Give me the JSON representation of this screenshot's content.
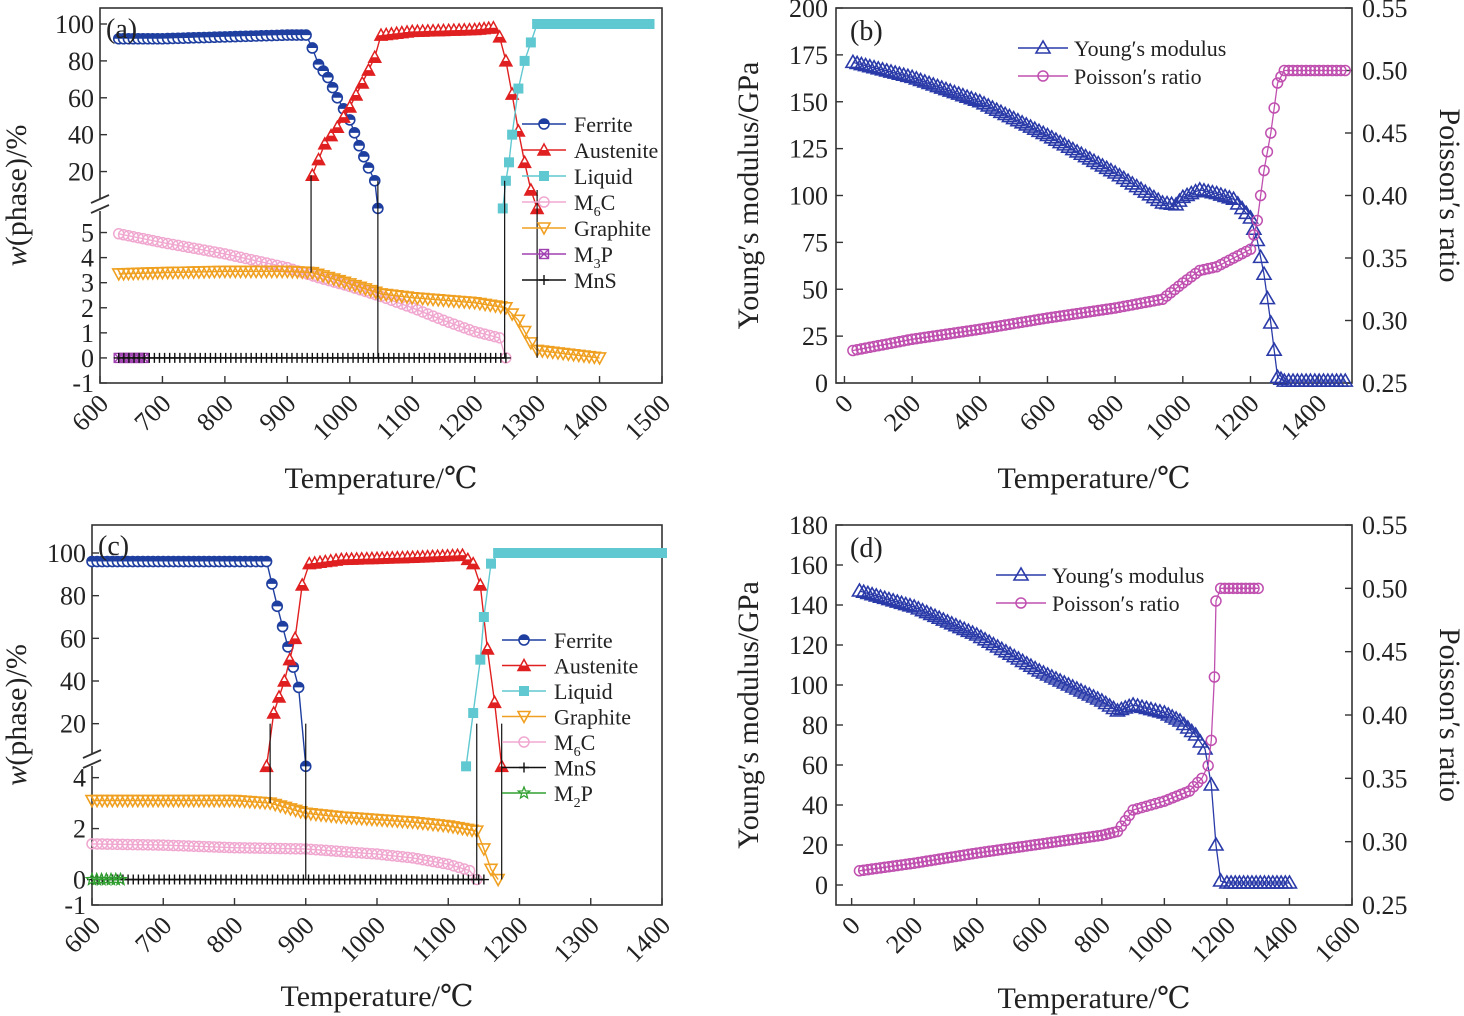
{
  "colors": {
    "ferrite": "#1f3fa0",
    "austenite": "#e02020",
    "liquid": "#60c8d0",
    "m6c": "#f0a8d0",
    "graphite": "#f0a020",
    "m3p": "#a040b0",
    "mns": "#111111",
    "m2p": "#30a030",
    "young": "#2a3aa8",
    "poisson": "#c050b0"
  },
  "chart_data": [
    {
      "panel": "(a)",
      "type": "line",
      "xlabel": "Temperature/℃",
      "ylabel": "w(phase)/%",
      "xlim": [
        600,
        1500
      ],
      "xticks": [
        "600",
        "700",
        "800",
        "900",
        "1000",
        "1100",
        "1200",
        "1300",
        "1400",
        "1500"
      ],
      "broken_y_axis": true,
      "upper_yticks": [
        "20",
        "40",
        "60",
        "80",
        "100"
      ],
      "lower_yticks": [
        "-1",
        "0",
        "1",
        "2",
        "3",
        "4",
        "5"
      ],
      "legend": [
        "Ferrite",
        "Austenite",
        "Liquid",
        "M6C",
        "Graphite",
        "M3P",
        "MnS"
      ],
      "series": [
        {
          "name": "Ferrite",
          "segment": "upper",
          "points": [
            [
              630,
              92
            ],
            [
              700,
              92
            ],
            [
              800,
              93
            ],
            [
              900,
              94
            ],
            [
              930,
              94
            ],
            [
              940,
              87
            ],
            [
              950,
              78
            ],
            [
              965,
              71
            ],
            [
              980,
              60
            ],
            [
              1000,
              48
            ],
            [
              1015,
              34
            ],
            [
              1030,
              22
            ],
            [
              1040,
              15
            ],
            [
              1045,
              0
            ]
          ]
        },
        {
          "name": "Austenite",
          "segment": "upper",
          "points": [
            [
              940,
              18
            ],
            [
              960,
              35
            ],
            [
              980,
              44
            ],
            [
              1000,
              55
            ],
            [
              1020,
              68
            ],
            [
              1040,
              82
            ],
            [
              1050,
              94
            ],
            [
              1100,
              96
            ],
            [
              1200,
              97
            ],
            [
              1230,
              98
            ],
            [
              1240,
              93
            ],
            [
              1250,
              80
            ],
            [
              1260,
              62
            ],
            [
              1270,
              42
            ],
            [
              1280,
              25
            ],
            [
              1290,
              10
            ],
            [
              1300,
              0
            ]
          ]
        },
        {
          "name": "Liquid",
          "segment": "upper",
          "points": [
            [
              1245,
              0
            ],
            [
              1250,
              15
            ],
            [
              1255,
              25
            ],
            [
              1260,
              40
            ],
            [
              1270,
              65
            ],
            [
              1280,
              80
            ],
            [
              1290,
              90
            ],
            [
              1300,
              100
            ],
            [
              1480,
              100
            ]
          ]
        },
        {
          "name": "M6C",
          "segment": "lower",
          "points": [
            [
              630,
              4.95
            ],
            [
              700,
              4.6
            ],
            [
              800,
              4.15
            ],
            [
              900,
              3.6
            ],
            [
              950,
              3.2
            ],
            [
              1000,
              2.85
            ],
            [
              1050,
              2.45
            ],
            [
              1100,
              2.0
            ],
            [
              1150,
              1.5
            ],
            [
              1200,
              1.05
            ],
            [
              1240,
              0.8
            ],
            [
              1250,
              0
            ]
          ]
        },
        {
          "name": "Graphite",
          "segment": "lower",
          "points": [
            [
              630,
              3.35
            ],
            [
              700,
              3.4
            ],
            [
              800,
              3.45
            ],
            [
              900,
              3.45
            ],
            [
              940,
              3.4
            ],
            [
              1000,
              2.95
            ],
            [
              1050,
              2.55
            ],
            [
              1100,
              2.4
            ],
            [
              1200,
              2.2
            ],
            [
              1250,
              2.0
            ],
            [
              1270,
              1.5
            ],
            [
              1290,
              0.6
            ],
            [
              1300,
              0.3
            ],
            [
              1350,
              0.15
            ],
            [
              1400,
              0
            ]
          ]
        },
        {
          "name": "M3P",
          "segment": "lower",
          "points": [
            [
              630,
              0
            ],
            [
              670,
              0
            ]
          ]
        },
        {
          "name": "MnS",
          "segment": "lower",
          "points": [
            [
              630,
              0
            ],
            [
              1250,
              0
            ]
          ]
        }
      ]
    },
    {
      "panel": "(b)",
      "type": "line",
      "xlabel": "Temperature/℃",
      "ylabel": "Young′s modulus/GPa",
      "y2label": "Poisson′s ratio",
      "xlim": [
        -25,
        1500
      ],
      "ylim": [
        0,
        200
      ],
      "y2lim": [
        0.25,
        0.55
      ],
      "xticks": [
        "0",
        "200",
        "400",
        "600",
        "800",
        "1000",
        "1200",
        "1400"
      ],
      "yticks": [
        "0",
        "25",
        "50",
        "75",
        "100",
        "125",
        "150",
        "175",
        "200"
      ],
      "y2ticks": [
        "0.25",
        "0.30",
        "0.35",
        "0.40",
        "0.45",
        "0.50",
        "0.55"
      ],
      "legend": [
        "Young′s modulus",
        "Poisson′s ratio"
      ],
      "series": [
        {
          "name": "Young′s modulus",
          "axis": "left",
          "points": [
            [
              25,
              171
            ],
            [
              200,
              163
            ],
            [
              400,
              150
            ],
            [
              600,
              132
            ],
            [
              800,
              112
            ],
            [
              940,
              96
            ],
            [
              980,
              95
            ],
            [
              1000,
              99
            ],
            [
              1050,
              103
            ],
            [
              1100,
              101
            ],
            [
              1150,
              98
            ],
            [
              1200,
              88
            ],
            [
              1220,
              76
            ],
            [
              1240,
              58
            ],
            [
              1260,
              32
            ],
            [
              1280,
              3
            ],
            [
              1300,
              1
            ],
            [
              1480,
              1
            ]
          ]
        },
        {
          "name": "Poisson′s ratio",
          "axis": "right",
          "points": [
            [
              25,
              0.276
            ],
            [
              200,
              0.285
            ],
            [
              400,
              0.293
            ],
            [
              600,
              0.302
            ],
            [
              800,
              0.31
            ],
            [
              940,
              0.317
            ],
            [
              1000,
              0.33
            ],
            [
              1050,
              0.34
            ],
            [
              1100,
              0.343
            ],
            [
              1200,
              0.357
            ],
            [
              1220,
              0.38
            ],
            [
              1240,
              0.42
            ],
            [
              1260,
              0.45
            ],
            [
              1280,
              0.49
            ],
            [
              1300,
              0.5
            ],
            [
              1480,
              0.5
            ]
          ]
        }
      ]
    },
    {
      "panel": "(c)",
      "type": "line",
      "xlabel": "Temperature/℃",
      "ylabel": "w(phase)/%",
      "xlim": [
        600,
        1400
      ],
      "xticks": [
        "600",
        "700",
        "800",
        "900",
        "1000",
        "1100",
        "1200",
        "1300",
        "1400"
      ],
      "broken_y_axis": true,
      "upper_yticks": [
        "20",
        "40",
        "60",
        "80",
        "100"
      ],
      "lower_yticks": [
        "-1",
        "0",
        "2",
        "4"
      ],
      "legend": [
        "Ferrite",
        "Austenite",
        "Liquid",
        "Graphite",
        "M6C",
        "MnS",
        "M2P"
      ],
      "series": [
        {
          "name": "Ferrite",
          "segment": "upper",
          "points": [
            [
              600,
              96
            ],
            [
              700,
              96
            ],
            [
              800,
              96
            ],
            [
              845,
              96
            ],
            [
              860,
              75
            ],
            [
              875,
              56
            ],
            [
              890,
              37
            ],
            [
              900,
              0
            ]
          ]
        },
        {
          "name": "Austenite",
          "segment": "upper",
          "points": [
            [
              845,
              0
            ],
            [
              855,
              25
            ],
            [
              870,
              40
            ],
            [
              885,
              60
            ],
            [
              895,
              85
            ],
            [
              905,
              95
            ],
            [
              950,
              97
            ],
            [
              1050,
              98
            ],
            [
              1120,
              99
            ],
            [
              1135,
              95
            ],
            [
              1145,
              85
            ],
            [
              1155,
              55
            ],
            [
              1165,
              30
            ],
            [
              1175,
              0
            ]
          ]
        },
        {
          "name": "Liquid",
          "segment": "upper",
          "points": [
            [
              1125,
              0
            ],
            [
              1135,
              25
            ],
            [
              1145,
              50
            ],
            [
              1150,
              70
            ],
            [
              1160,
              95
            ],
            [
              1170,
              100
            ],
            [
              1400,
              100
            ]
          ]
        },
        {
          "name": "Graphite",
          "segment": "lower",
          "points": [
            [
              600,
              3.1
            ],
            [
              700,
              3.1
            ],
            [
              800,
              3.1
            ],
            [
              850,
              3.0
            ],
            [
              900,
              2.6
            ],
            [
              950,
              2.45
            ],
            [
              1000,
              2.35
            ],
            [
              1050,
              2.25
            ],
            [
              1100,
              2.1
            ],
            [
              1140,
              1.9
            ],
            [
              1150,
              1.2
            ],
            [
              1160,
              0.4
            ],
            [
              1170,
              0
            ]
          ]
        },
        {
          "name": "M6C",
          "segment": "lower",
          "points": [
            [
              600,
              1.4
            ],
            [
              700,
              1.35
            ],
            [
              800,
              1.25
            ],
            [
              900,
              1.2
            ],
            [
              1000,
              1.0
            ],
            [
              1050,
              0.85
            ],
            [
              1100,
              0.6
            ],
            [
              1130,
              0.35
            ],
            [
              1140,
              0
            ]
          ]
        },
        {
          "name": "MnS",
          "segment": "lower",
          "points": [
            [
              600,
              0
            ],
            [
              1150,
              0
            ]
          ]
        },
        {
          "name": "M2P",
          "segment": "lower",
          "points": [
            [
              600,
              0
            ],
            [
              640,
              0
            ]
          ]
        }
      ]
    },
    {
      "panel": "(d)",
      "type": "line",
      "xlabel": "Temperature/℃",
      "ylabel": "Young′s modulus/GPa",
      "y2label": "Poisson′s ratio",
      "xlim": [
        -50,
        1600
      ],
      "ylim": [
        -10,
        180
      ],
      "y2lim": [
        0.25,
        0.55
      ],
      "xticks": [
        "0",
        "200",
        "400",
        "600",
        "800",
        "1000",
        "1200",
        "1400",
        "1600"
      ],
      "yticks": [
        "0",
        "20",
        "40",
        "60",
        "80",
        "100",
        "120",
        "140",
        "160",
        "180"
      ],
      "y2ticks": [
        "0.25",
        "0.30",
        "0.35",
        "0.40",
        "0.45",
        "0.50",
        "0.55"
      ],
      "legend": [
        "Young′s modulus",
        "Poisson′s ratio"
      ],
      "series": [
        {
          "name": "Young′s modulus",
          "axis": "left",
          "points": [
            [
              25,
              147
            ],
            [
              200,
              139
            ],
            [
              400,
              125
            ],
            [
              600,
              107
            ],
            [
              800,
              92
            ],
            [
              850,
              87
            ],
            [
              900,
              90
            ],
            [
              1000,
              86
            ],
            [
              1050,
              82
            ],
            [
              1100,
              75
            ],
            [
              1130,
              68
            ],
            [
              1150,
              50
            ],
            [
              1165,
              20
            ],
            [
              1180,
              2
            ],
            [
              1200,
              1
            ],
            [
              1400,
              1
            ]
          ]
        },
        {
          "name": "Poisson′s ratio",
          "axis": "right",
          "points": [
            [
              25,
              0.277
            ],
            [
              200,
              0.283
            ],
            [
              400,
              0.291
            ],
            [
              600,
              0.298
            ],
            [
              800,
              0.305
            ],
            [
              850,
              0.308
            ],
            [
              900,
              0.325
            ],
            [
              1000,
              0.332
            ],
            [
              1080,
              0.34
            ],
            [
              1120,
              0.35
            ],
            [
              1140,
              0.36
            ],
            [
              1150,
              0.38
            ],
            [
              1160,
              0.43
            ],
            [
              1165,
              0.49
            ],
            [
              1180,
              0.5
            ],
            [
              1300,
              0.5
            ]
          ]
        }
      ]
    }
  ]
}
